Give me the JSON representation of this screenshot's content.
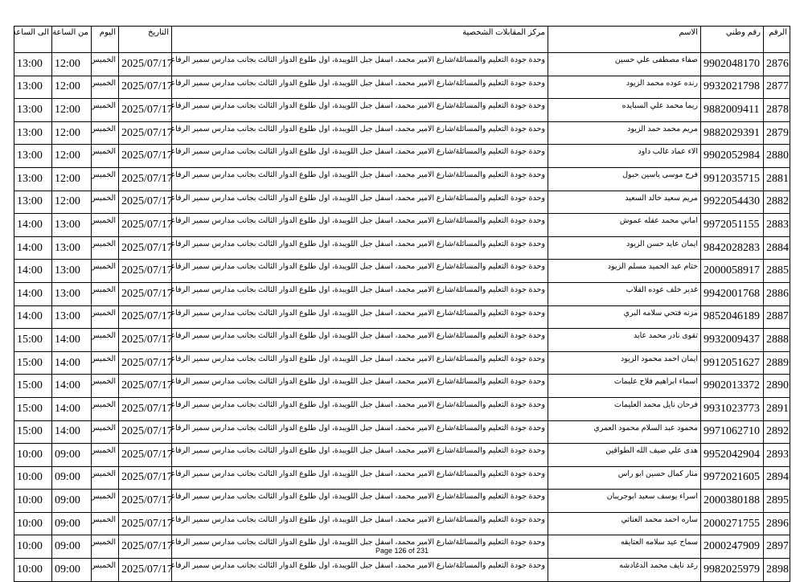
{
  "headers": {
    "num": "الرقم",
    "id": "رقم وطني",
    "name": "الاسم",
    "center": "مركز المقابلات الشخصية",
    "date": "التاريخ",
    "day": "اليوم",
    "from": "من الساعة",
    "to": "الى الساعة"
  },
  "center": "وحدة جودة التعليم والمسائلة/شارع الامير محمد، اسفل جبل اللويبدة، اول طلوع الدوار الثالث بجانب مدارس سمير الرفاعي",
  "date": "2025/07/17",
  "day": "الخميس",
  "rows": [
    {
      "num": "2876",
      "id": "9902048170",
      "name": "صفاء مصطفى علي حسين",
      "from": "12:00",
      "to": "13:00"
    },
    {
      "num": "2877",
      "id": "9932021798",
      "name": "رنده عوده محمد الزيود",
      "from": "12:00",
      "to": "13:00"
    },
    {
      "num": "2878",
      "id": "9882009411",
      "name": "ريما محمد علي السبايده",
      "from": "12:00",
      "to": "13:00"
    },
    {
      "num": "2879",
      "id": "9882029391",
      "name": "مريم محمد حمد الزيود",
      "from": "12:00",
      "to": "13:00"
    },
    {
      "num": "2880",
      "id": "9902052984",
      "name": "الاء عماد غالب داود",
      "from": "12:00",
      "to": "13:00"
    },
    {
      "num": "2881",
      "id": "9912035715",
      "name": "فرح موسى ياسين حبول",
      "from": "12:00",
      "to": "13:00"
    },
    {
      "num": "2882",
      "id": "9922054430",
      "name": "مريم سعيد خالد السعيد",
      "from": "12:00",
      "to": "13:00"
    },
    {
      "num": "2883",
      "id": "9972051155",
      "name": "اماني محمد عقله عموش",
      "from": "13:00",
      "to": "14:00"
    },
    {
      "num": "2884",
      "id": "9842028283",
      "name": "ايمان عايد حسن الزيود",
      "from": "13:00",
      "to": "14:00"
    },
    {
      "num": "2885",
      "id": "2000058917",
      "name": "ختام عبد الحميد مسلم الزيود",
      "from": "13:00",
      "to": "14:00"
    },
    {
      "num": "2886",
      "id": "9942001768",
      "name": "غدير خلف عوده القلاب",
      "from": "13:00",
      "to": "14:00"
    },
    {
      "num": "2887",
      "id": "9852046189",
      "name": "مزنه فتحي سلامه البري",
      "from": "13:00",
      "to": "14:00"
    },
    {
      "num": "2888",
      "id": "9932009437",
      "name": "تقوى نادر محمد عابد",
      "from": "14:00",
      "to": "15:00"
    },
    {
      "num": "2889",
      "id": "9912051627",
      "name": "ايمان احمد محمود الزيود",
      "from": "14:00",
      "to": "15:00"
    },
    {
      "num": "2890",
      "id": "9902013372",
      "name": "اسماء ابراهيم فلاح عليمات",
      "from": "14:00",
      "to": "15:00"
    },
    {
      "num": "2891",
      "id": "9931023773",
      "name": "فرحان نايل محمد العليمات",
      "from": "14:00",
      "to": "15:00"
    },
    {
      "num": "2892",
      "id": "9971062710",
      "name": "محمود عبد السلام محمود العمري",
      "from": "14:00",
      "to": "15:00"
    },
    {
      "num": "2893",
      "id": "9952042904",
      "name": "هدى علي ضيف الله الطواقين",
      "from": "09:00",
      "to": "10:00"
    },
    {
      "num": "2894",
      "id": "9972021605",
      "name": "منار كمال حسين ابو راس",
      "from": "09:00",
      "to": "10:00"
    },
    {
      "num": "2895",
      "id": "2000380188",
      "name": "اسراء يوسف سعيد ابوجريبان",
      "from": "09:00",
      "to": "10:00"
    },
    {
      "num": "2896",
      "id": "2000271755",
      "name": "ساره احمد محمد العناتي",
      "from": "09:00",
      "to": "10:00"
    },
    {
      "num": "2897",
      "id": "2000247909",
      "name": "سماح عيد سلامه العتايقه",
      "from": "09:00",
      "to": "10:00"
    },
    {
      "num": "2898",
      "id": "9982025979",
      "name": "رغد نايف محمد الدغادشه",
      "from": "09:00",
      "to": "10:00"
    }
  ],
  "footer": "Page 126 of 231"
}
